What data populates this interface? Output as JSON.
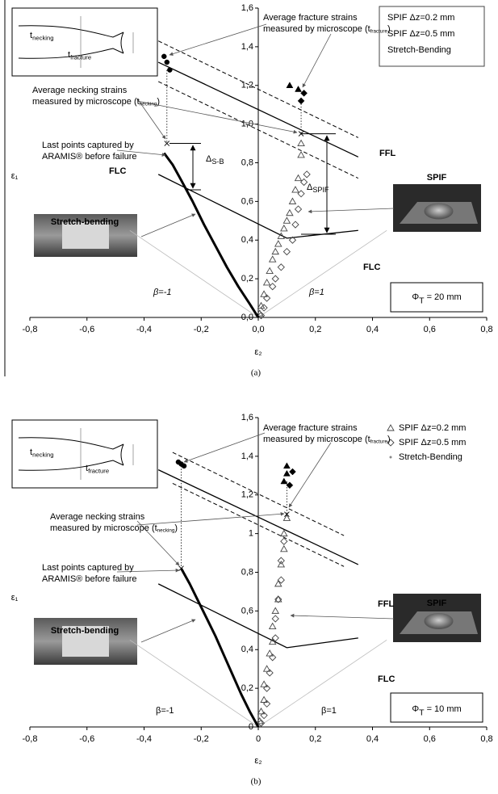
{
  "chart_data": [
    {
      "type": "scatter",
      "caption": "(a)",
      "xlabel": "ε₂",
      "ylabel": "ε₁",
      "xlim": [
        -0.8,
        0.8
      ],
      "xticks": [
        {
          "value": -0.8,
          "label": "-0,8"
        },
        {
          "value": -0.6,
          "label": "-0,6"
        },
        {
          "value": -0.4,
          "label": "-0,4"
        },
        {
          "value": -0.2,
          "label": "-0,2"
        },
        {
          "value": 0,
          "label": "0,0"
        },
        {
          "value": 0.2,
          "label": "0,2"
        },
        {
          "value": 0.4,
          "label": "0,4"
        },
        {
          "value": 0.6,
          "label": "0,6"
        },
        {
          "value": 0.8,
          "label": "0,8"
        }
      ],
      "ylim": [
        0,
        1.6
      ],
      "yticks": [
        {
          "value": 0,
          "label": "0,0"
        },
        {
          "value": 0.2,
          "label": "0,2"
        },
        {
          "value": 0.4,
          "label": "0,4"
        },
        {
          "value": 0.6,
          "label": "0,6"
        },
        {
          "value": 0.8,
          "label": "0,8"
        },
        {
          "value": 1,
          "label": "1,0"
        },
        {
          "value": 1.2,
          "label": "1,2"
        },
        {
          "value": 1.4,
          "label": "1,4"
        },
        {
          "value": 1.6,
          "label": "1,6"
        }
      ],
      "legend_markers": false,
      "series": [
        {
          "name": "SPIF  Δz=0.2 mm",
          "marker": "triangle",
          "color": "#444444",
          "x": [
            0.005,
            0.01,
            0.02,
            0.03,
            0.04,
            0.05,
            0.06,
            0.07,
            0.08,
            0.09,
            0.1,
            0.11,
            0.12,
            0.13,
            0.14,
            0.15,
            0.15
          ],
          "values": [
            0.02,
            0.06,
            0.12,
            0.18,
            0.24,
            0.3,
            0.34,
            0.38,
            0.42,
            0.46,
            0.5,
            0.54,
            0.6,
            0.66,
            0.72,
            0.84,
            0.9
          ]
        },
        {
          "name": "SPIF  Δz=0.5 mm",
          "marker": "diamond",
          "color": "#444444",
          "x": [
            0.01,
            0.02,
            0.03,
            0.05,
            0.06,
            0.08,
            0.1,
            0.12,
            0.13,
            0.14,
            0.15,
            0.16,
            0.17
          ],
          "values": [
            0.01,
            0.05,
            0.1,
            0.16,
            0.2,
            0.26,
            0.34,
            0.4,
            0.48,
            0.56,
            0.64,
            0.7,
            0.74
          ]
        },
        {
          "name": "Stretch-Bending",
          "marker": "curve",
          "color": "#000000",
          "x": [
            0,
            -0.03,
            -0.07,
            -0.11,
            -0.15,
            -0.19,
            -0.23,
            -0.27,
            -0.3,
            -0.33
          ],
          "values": [
            0,
            0.07,
            0.16,
            0.26,
            0.37,
            0.48,
            0.6,
            0.71,
            0.79,
            0.85
          ]
        },
        {
          "marker": "circle-filled",
          "color": "#000000",
          "x": [
            -0.33,
            -0.32,
            -0.31
          ],
          "values": [
            1.35,
            1.32,
            1.28
          ]
        },
        {
          "marker": "triangle-filled",
          "color": "#000000",
          "x": [
            0.11,
            0.14
          ],
          "values": [
            1.2,
            1.18
          ]
        },
        {
          "marker": "diamond-filled",
          "color": "#000000",
          "x": [
            0.15,
            0.16
          ],
          "values": [
            1.12,
            1.16
          ]
        },
        {
          "marker": "x",
          "color": "#000000",
          "x": [
            -0.32,
            0.15
          ],
          "values": [
            0.9,
            0.95
          ]
        }
      ],
      "lines": [
        {
          "style": "solid",
          "x": [
            -0.35,
            0.1,
            0.35
          ],
          "y": [
            0.74,
            0.41,
            0.45
          ]
        },
        {
          "style": "solid",
          "x": [
            -0.35,
            0.35
          ],
          "y": [
            1.32,
            0.83
          ]
        },
        {
          "style": "dashed",
          "x": [
            -0.35,
            0.35
          ],
          "y": [
            1.43,
            0.93
          ]
        },
        {
          "style": "dashed",
          "x": [
            -0.35,
            0.35
          ],
          "y": [
            1.22,
            0.72
          ]
        },
        {
          "style": "thin",
          "x": [
            -0.45,
            0,
            0.45
          ],
          "y": [
            0.45,
            0,
            0.45
          ]
        },
        {
          "style": "dotted",
          "x": [
            -0.32,
            -0.32
          ],
          "y": [
            1.28,
            0.9
          ]
        },
        {
          "style": "dotted",
          "x": [
            0.15,
            0.15
          ],
          "y": [
            1.12,
            0.95
          ]
        }
      ],
      "annotations": [
        {
          "lines": [
            [
              "Average fracture strains"
            ],
            [
              "measured by microscope (t",
              {
                "sub": "fracture"
              },
              ")"
            ]
          ]
        },
        {
          "lines": [
            [
              "Average necking strains"
            ],
            [
              "measured by microscope (t",
              {
                "sub": "necking"
              },
              ")"
            ]
          ]
        },
        {
          "lines": [
            [
              "Last points captured by"
            ],
            [
              "ARAMIS® before failure"
            ]
          ]
        },
        {
          "lines": [
            [
              "t",
              {
                "sub": "necking"
              }
            ]
          ]
        },
        {
          "lines": [
            [
              "t",
              {
                "sub": "fracture"
              }
            ]
          ]
        },
        {
          "lines": [
            [
              "FFL"
            ]
          ]
        },
        {
          "lines": [
            [
              "FLC"
            ]
          ]
        },
        {
          "lines": [
            [
              "SPIF"
            ]
          ]
        },
        {
          "lines": [
            [
              "Stretch-bending"
            ]
          ]
        },
        {
          "lines": [
            [
              "β=-1"
            ]
          ]
        },
        {
          "lines": [
            [
              "β=1"
            ]
          ]
        },
        {
          "lines": [
            [
              "Φ",
              {
                "sub": "T"
              },
              " = 20 mm"
            ]
          ]
        },
        {
          "lines": [
            [
              "FLC"
            ]
          ]
        },
        {
          "lines": [
            [
              "Δ",
              {
                "sub": "S-B"
              }
            ]
          ]
        },
        {
          "lines": [
            [
              "Δ",
              {
                "sub": "SPIF"
              }
            ]
          ]
        }
      ]
    },
    {
      "type": "scatter",
      "caption": "(b)",
      "xlabel": "ε₂",
      "ylabel": "ε₁",
      "xlim": [
        -0.8,
        0.8
      ],
      "xticks": [
        {
          "value": -0.8,
          "label": "-0,8"
        },
        {
          "value": -0.6,
          "label": "-0,6"
        },
        {
          "value": -0.4,
          "label": "-0,4"
        },
        {
          "value": -0.2,
          "label": "-0,2"
        },
        0,
        {
          "value": 0.2,
          "label": "0,2"
        },
        {
          "value": 0.4,
          "label": "0,4"
        },
        {
          "value": 0.6,
          "label": "0,6"
        },
        {
          "value": 0.8,
          "label": "0,8"
        }
      ],
      "ylim": [
        0,
        1.6
      ],
      "yticks": [
        0,
        {
          "value": 0.2,
          "label": "0,2"
        },
        {
          "value": 0.4,
          "label": "0,4"
        },
        {
          "value": 0.6,
          "label": "0,6"
        },
        {
          "value": 0.8,
          "label": "0,8"
        },
        1,
        {
          "value": 1.2,
          "label": "1,2"
        },
        {
          "value": 1.4,
          "label": "1,4"
        },
        {
          "value": 1.6,
          "label": "1,6"
        }
      ],
      "legend_markers": true,
      "series": [
        {
          "name": "SPIF  Δz=0.2 mm",
          "marker": "triangle",
          "color": "#444444",
          "x": [
            0.005,
            0.01,
            0.02,
            0.02,
            0.03,
            0.04,
            0.05,
            0.05,
            0.06,
            0.07,
            0.07,
            0.08,
            0.09,
            0.09,
            0.1
          ],
          "values": [
            0.03,
            0.08,
            0.14,
            0.22,
            0.3,
            0.38,
            0.44,
            0.52,
            0.6,
            0.66,
            0.74,
            0.84,
            0.92,
            1.0,
            1.08
          ]
        },
        {
          "name": "SPIF  Δz=0.5 mm",
          "marker": "diamond",
          "color": "#444444",
          "x": [
            0.01,
            0.02,
            0.03,
            0.03,
            0.04,
            0.05,
            0.06,
            0.06,
            0.07,
            0.08,
            0.08,
            0.09
          ],
          "values": [
            0.02,
            0.06,
            0.12,
            0.2,
            0.28,
            0.36,
            0.46,
            0.56,
            0.66,
            0.76,
            0.86,
            0.96
          ]
        },
        {
          "name": "Stretch-Bending",
          "marker": "curve",
          "color": "#000000",
          "x": [
            0,
            -0.03,
            -0.06,
            -0.09,
            -0.12,
            -0.15,
            -0.18,
            -0.21,
            -0.24,
            -0.27
          ],
          "values": [
            0,
            0.08,
            0.17,
            0.27,
            0.37,
            0.47,
            0.56,
            0.65,
            0.74,
            0.82
          ]
        },
        {
          "marker": "circle-filled",
          "color": "#000000",
          "x": [
            -0.28,
            -0.27,
            -0.26
          ],
          "values": [
            1.37,
            1.36,
            1.35
          ]
        },
        {
          "marker": "triangle-filled",
          "color": "#000000",
          "x": [
            0.1,
            0.09,
            0.1
          ],
          "values": [
            1.35,
            1.27,
            1.31
          ]
        },
        {
          "marker": "diamond-filled",
          "color": "#000000",
          "x": [
            0.12,
            0.11
          ],
          "values": [
            1.32,
            1.25
          ]
        },
        {
          "marker": "x",
          "color": "#000000",
          "x": [
            -0.27,
            0.1
          ],
          "values": [
            0.82,
            1.1
          ]
        }
      ],
      "lines": [
        {
          "style": "solid",
          "x": [
            -0.35,
            0.1,
            0.35
          ],
          "y": [
            0.74,
            0.41,
            0.46
          ]
        },
        {
          "style": "solid",
          "x": [
            -0.35,
            0.35
          ],
          "y": [
            1.33,
            0.84
          ]
        },
        {
          "style": "dashed",
          "x": [
            -0.3,
            0.3
          ],
          "y": [
            1.42,
            0.99
          ]
        },
        {
          "style": "dashed",
          "x": [
            -0.3,
            0.3
          ],
          "y": [
            1.26,
            0.83
          ]
        },
        {
          "style": "thin",
          "x": [
            -0.45,
            0,
            0.45
          ],
          "y": [
            0.45,
            0,
            0.45
          ]
        },
        {
          "style": "dotted",
          "x": [
            -0.27,
            -0.27
          ],
          "y": [
            1.35,
            0.82
          ]
        },
        {
          "style": "dotted",
          "x": [
            0.1,
            0.1
          ],
          "y": [
            1.27,
            1.1
          ]
        }
      ],
      "annotations": [
        {
          "lines": [
            [
              "Average fracture strains"
            ],
            [
              "measured by microscope (t",
              {
                "sub": "fracture"
              },
              ")"
            ]
          ]
        },
        {
          "lines": [
            [
              "Average necking strains"
            ],
            [
              "measured by microscope (t",
              {
                "sub": "necking"
              },
              ")"
            ]
          ]
        },
        {
          "lines": [
            [
              "Last points captured by"
            ],
            [
              "ARAMIS® before failure"
            ]
          ]
        },
        {
          "lines": [
            [
              "t",
              {
                "sub": "necking"
              }
            ]
          ]
        },
        {
          "lines": [
            [
              "t",
              {
                "sub": "fracture"
              }
            ]
          ]
        },
        {
          "lines": [
            [
              "FFL"
            ]
          ]
        },
        {
          "lines": [
            [
              "FLC"
            ]
          ]
        },
        {
          "lines": [
            [
              "SPIF"
            ]
          ]
        },
        {
          "lines": [
            [
              "Stretch-bending"
            ]
          ]
        },
        {
          "lines": [
            [
              "β=-1"
            ]
          ]
        },
        {
          "lines": [
            [
              "β=1"
            ]
          ]
        },
        {
          "lines": [
            [
              "Φ",
              {
                "sub": "T"
              },
              " = 10 mm"
            ]
          ]
        }
      ]
    }
  ]
}
